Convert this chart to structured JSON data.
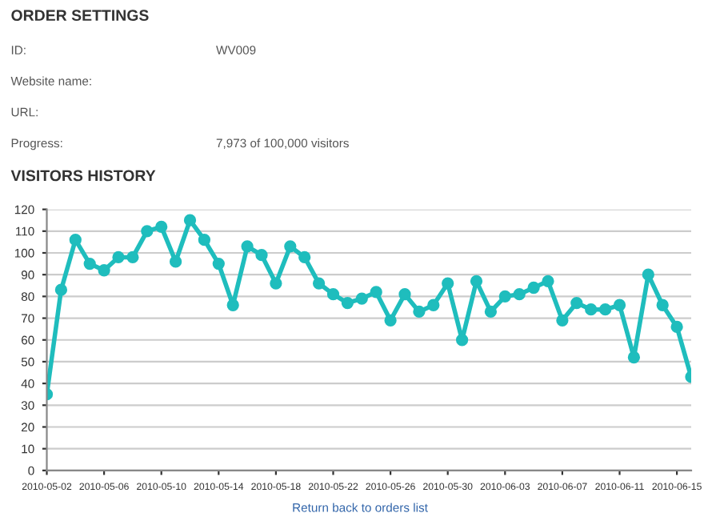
{
  "chart_data": {
    "type": "line",
    "title": "VISITORS HISTORY",
    "annotations": [
      "ORDER SETTINGS",
      "ID:",
      "WV009",
      "Website name:",
      "URL:",
      "Progress:",
      "7,973 of 100,000 visitors",
      "Return back to orders list"
    ],
    "x": [
      "2010-05-02",
      "2010-05-03",
      "2010-05-04",
      "2010-05-05",
      "2010-05-06",
      "2010-05-07",
      "2010-05-08",
      "2010-05-09",
      "2010-05-10",
      "2010-05-11",
      "2010-05-12",
      "2010-05-13",
      "2010-05-14",
      "2010-05-15",
      "2010-05-16",
      "2010-05-17",
      "2010-05-18",
      "2010-05-19",
      "2010-05-20",
      "2010-05-21",
      "2010-05-22",
      "2010-05-23",
      "2010-05-24",
      "2010-05-25",
      "2010-05-26",
      "2010-05-27",
      "2010-05-28",
      "2010-05-29",
      "2010-05-30",
      "2010-05-31",
      "2010-06-01",
      "2010-06-02",
      "2010-06-03",
      "2010-06-04",
      "2010-06-05",
      "2010-06-06",
      "2010-06-07",
      "2010-06-08",
      "2010-06-09",
      "2010-06-10",
      "2010-06-11",
      "2010-06-12",
      "2010-06-13",
      "2010-06-14",
      "2010-06-15",
      "2010-06-16"
    ],
    "series": [
      {
        "color": "#1fbdbd",
        "values": [
          35,
          83,
          106,
          95,
          92,
          98,
          98,
          110,
          112,
          96,
          115,
          106,
          95,
          76,
          103,
          99,
          86,
          103,
          98,
          86,
          81,
          77,
          79,
          82,
          69,
          81,
          73,
          76,
          86,
          60,
          87,
          73,
          80,
          81,
          84,
          87,
          69,
          77,
          74,
          74,
          76,
          52,
          90,
          76,
          66,
          43
        ]
      }
    ],
    "xlim": [
      "2010-05-02",
      "2010-06-16"
    ],
    "xticks": [
      "2010-05-02",
      "2010-05-06",
      "2010-05-10",
      "2010-05-14",
      "2010-05-18",
      "2010-05-22",
      "2010-05-26",
      "2010-05-30",
      "2010-06-03",
      "2010-06-07",
      "2010-06-11",
      "2010-06-15"
    ],
    "ylim": [
      0,
      120
    ],
    "yticks": [
      0,
      10,
      20,
      30,
      40,
      50,
      60,
      70,
      80,
      90,
      100,
      110,
      120
    ],
    "grid": "y",
    "marker": "circle",
    "line_style": "solid"
  }
}
